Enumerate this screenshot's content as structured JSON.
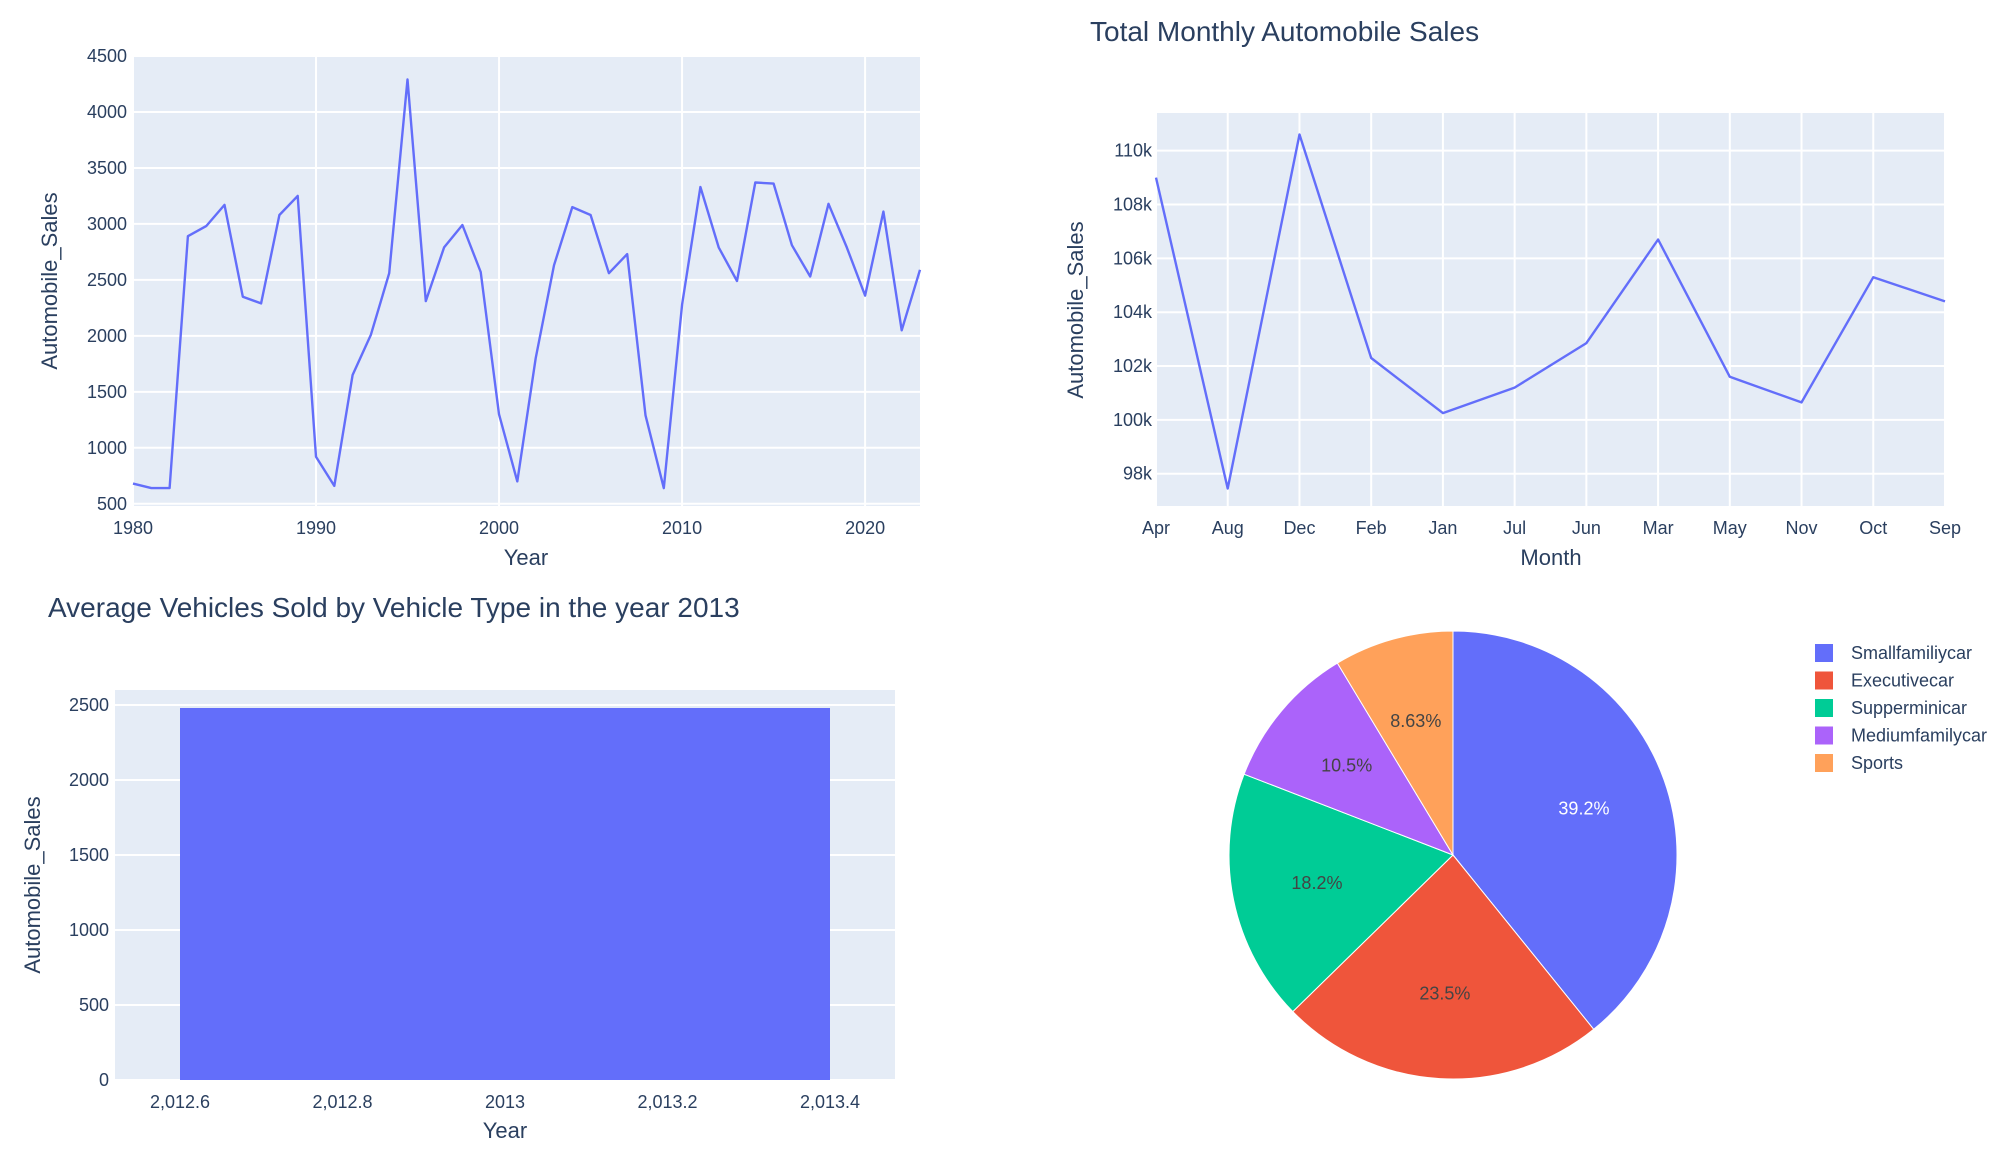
{
  "chart_data": [
    {
      "type": "line",
      "title": "",
      "xlabel": "Year",
      "ylabel": "Automobile_Sales",
      "xlim": [
        1980,
        2023
      ],
      "ylim": [
        480,
        4500
      ],
      "xticks": [
        1980,
        1990,
        2000,
        2010,
        2020
      ],
      "yticks": [
        500,
        1000,
        1500,
        2000,
        2500,
        3000,
        3500,
        4000,
        4500
      ],
      "color": "#636efa",
      "x": [
        1980,
        1981,
        1982,
        1983,
        1984,
        1985,
        1986,
        1987,
        1988,
        1989,
        1990,
        1991,
        1992,
        1993,
        1994,
        1995,
        1996,
        1997,
        1998,
        1999,
        2000,
        2001,
        2002,
        2003,
        2004,
        2005,
        2006,
        2007,
        2008,
        2009,
        2010,
        2011,
        2012,
        2013,
        2014,
        2015,
        2016,
        2017,
        2018,
        2019,
        2020,
        2021,
        2022,
        2023
      ],
      "y": [
        680,
        640,
        640,
        2890,
        2980,
        3170,
        2350,
        2290,
        3080,
        3250,
        920,
        660,
        1650,
        2010,
        2560,
        4290,
        2310,
        2790,
        2990,
        2570,
        1300,
        700,
        1800,
        2630,
        3150,
        3080,
        2560,
        2730,
        1290,
        640,
        2280,
        3330,
        2790,
        2490,
        3370,
        3360,
        2810,
        2530,
        3180,
        2790,
        2360,
        3110,
        2050,
        2590
      ]
    },
    {
      "type": "line",
      "title": "Total Monthly Automobile Sales",
      "xlabel": "Month",
      "ylabel": "Automobile_Sales",
      "categories": [
        "Apr",
        "Aug",
        "Dec",
        "Feb",
        "Jan",
        "Jul",
        "Jun",
        "Mar",
        "May",
        "Nov",
        "Oct",
        "Sep"
      ],
      "values": [
        109000,
        97450,
        110600,
        102300,
        100250,
        101200,
        102850,
        106700,
        101600,
        100650,
        105300,
        104400
      ],
      "ylim": [
        96800,
        111400
      ],
      "yticks": [
        98000,
        100000,
        102000,
        104000,
        106000,
        108000,
        110000
      ],
      "ytick_labels": [
        "98k",
        "100k",
        "102k",
        "104k",
        "106k",
        "108k",
        "110k"
      ],
      "color": "#636efa"
    },
    {
      "type": "bar",
      "title": "Average Vehicles Sold by Vehicle Type in the year 2013",
      "xlabel": "Year",
      "ylabel": "Automobile_Sales",
      "x": [
        2013
      ],
      "values": [
        2480
      ],
      "xlim": [
        2012.52,
        2013.48
      ],
      "ylim": [
        0,
        2600
      ],
      "xticks": [
        2012.6,
        2012.8,
        2013,
        2013.2,
        2013.4
      ],
      "xtick_labels": [
        "2,012.6",
        "2,012.8",
        "2013",
        "2,013.2",
        "2,013.4"
      ],
      "yticks": [
        0,
        500,
        1000,
        1500,
        2000,
        2500
      ],
      "color": "#636efa"
    },
    {
      "type": "pie",
      "labels": [
        "Smallfamiliycar",
        "Executivecar",
        "Supperminicar",
        "Mediumfamilycar",
        "Sports"
      ],
      "values": [
        39.2,
        23.5,
        18.2,
        10.5,
        8.63
      ],
      "text": [
        "39.2%",
        "23.5%",
        "18.2%",
        "10.5%",
        "8.63%"
      ],
      "colors": [
        "#636efa",
        "#ef553b",
        "#00cc96",
        "#ab63fa",
        "#ffa15a"
      ],
      "legend_position": "top-right"
    }
  ]
}
